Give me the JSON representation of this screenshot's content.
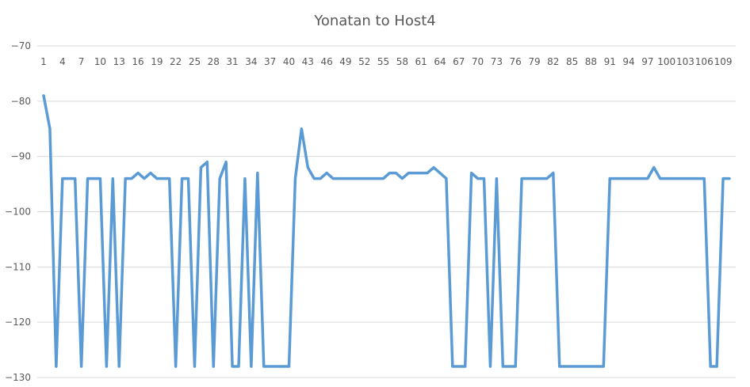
{
  "chart_data": {
    "type": "line",
    "title": "Yonatan to Host4",
    "xlabel": "",
    "ylabel": "",
    "ylim": [
      -130,
      -70
    ],
    "yticks": [
      -70,
      -80,
      -90,
      -100,
      -110,
      -120,
      -130
    ],
    "grid": true,
    "legend": "none",
    "x_tick_labels": [
      "1",
      "4",
      "7",
      "10",
      "13",
      "16",
      "19",
      "22",
      "25",
      "28",
      "31",
      "34",
      "37",
      "40",
      "43",
      "46",
      "49",
      "52",
      "55",
      "58",
      "61",
      "64",
      "67",
      "70",
      "73",
      "76",
      "79",
      "82",
      "85",
      "88",
      "91",
      "94",
      "97",
      "100",
      "103",
      "106",
      "109"
    ],
    "series": [
      {
        "color": "#5b9bd5",
        "x": [
          1,
          2,
          3,
          4,
          5,
          6,
          7,
          8,
          9,
          10,
          11,
          12,
          13,
          14,
          15,
          16,
          17,
          18,
          19,
          20,
          21,
          22,
          23,
          24,
          25,
          26,
          27,
          28,
          29,
          30,
          31,
          32,
          33,
          34,
          35,
          36,
          37,
          38,
          39,
          40,
          41,
          42,
          43,
          44,
          45,
          46,
          47,
          48,
          49,
          50,
          51,
          52,
          53,
          54,
          55,
          56,
          57,
          58,
          59,
          60,
          61,
          62,
          63,
          64,
          65,
          66,
          67,
          68,
          69,
          70,
          71,
          72,
          73,
          74,
          75,
          76,
          77,
          78,
          79,
          80,
          81,
          82,
          83,
          84,
          85,
          86,
          87,
          88,
          89,
          90,
          91,
          92,
          93,
          94,
          95,
          96,
          97,
          98,
          99,
          100,
          101,
          102,
          103,
          104,
          105,
          106,
          107,
          108,
          109,
          110
        ],
        "values": [
          -79,
          -85,
          -128,
          -94,
          -94,
          -94,
          -128,
          -94,
          -94,
          -94,
          -128,
          -94,
          -128,
          -94,
          -94,
          -93,
          -94,
          -93,
          -94,
          -94,
          -94,
          -128,
          -94,
          -94,
          -128,
          -92,
          -91,
          -128,
          -94,
          -91,
          -128,
          -128,
          -94,
          -128,
          -93,
          -128,
          -128,
          -128,
          -128,
          -128,
          -94,
          -85,
          -92,
          -94,
          -94,
          -93,
          -94,
          -94,
          -94,
          -94,
          -94,
          -94,
          -94,
          -94,
          -94,
          -93,
          -93,
          -94,
          -93,
          -93,
          -93,
          -93,
          -92,
          -93,
          -94,
          -128,
          -128,
          -128,
          -93,
          -94,
          -94,
          -128,
          -94,
          -128,
          -128,
          -128,
          -94,
          -94,
          -94,
          -94,
          -94,
          -93,
          -128,
          -128,
          -128,
          -128,
          -128,
          -128,
          -128,
          -128,
          -94,
          -94,
          -94,
          -94,
          -94,
          -94,
          -94,
          -92,
          -94,
          -94,
          -94,
          -94,
          -94,
          -94,
          -94,
          -94,
          -128,
          -128,
          -94,
          -94
        ]
      }
    ]
  }
}
